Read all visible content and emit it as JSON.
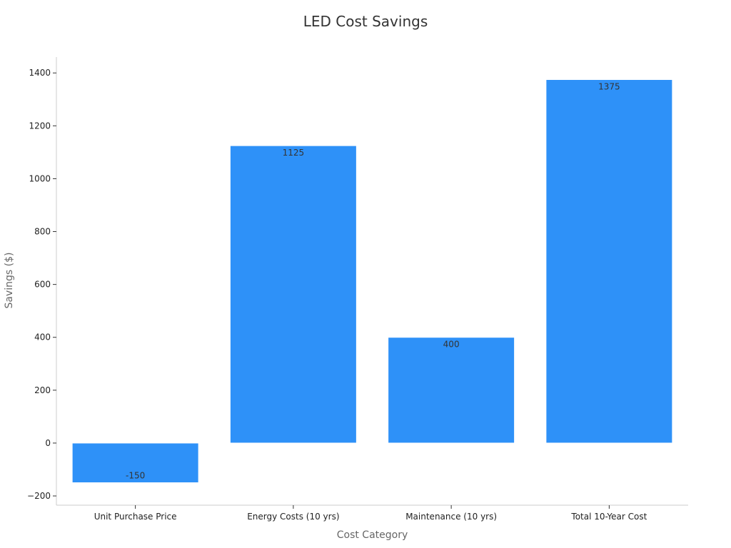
{
  "chart_data": {
    "type": "bar",
    "title": "LED Cost Savings",
    "xlabel": "Cost Category",
    "ylabel": "Savings ($)",
    "categories": [
      "Unit Purchase Price",
      "Energy Costs (10 yrs)",
      "Maintenance (10 yrs)",
      "Total 10-Year Cost"
    ],
    "values": [
      -150,
      1125,
      400,
      1375
    ],
    "value_labels": [
      "-150",
      "1125",
      "400",
      "1375"
    ],
    "ylim": [
      -235,
      1460
    ],
    "yticks": [
      -200,
      0,
      200,
      400,
      600,
      800,
      1000,
      1200,
      1400
    ],
    "ytick_labels": [
      "−200",
      "0",
      "200",
      "400",
      "600",
      "800",
      "1000",
      "1200",
      "1400"
    ],
    "grid": false,
    "legend": "none",
    "bar_color": "#2e91f8"
  }
}
